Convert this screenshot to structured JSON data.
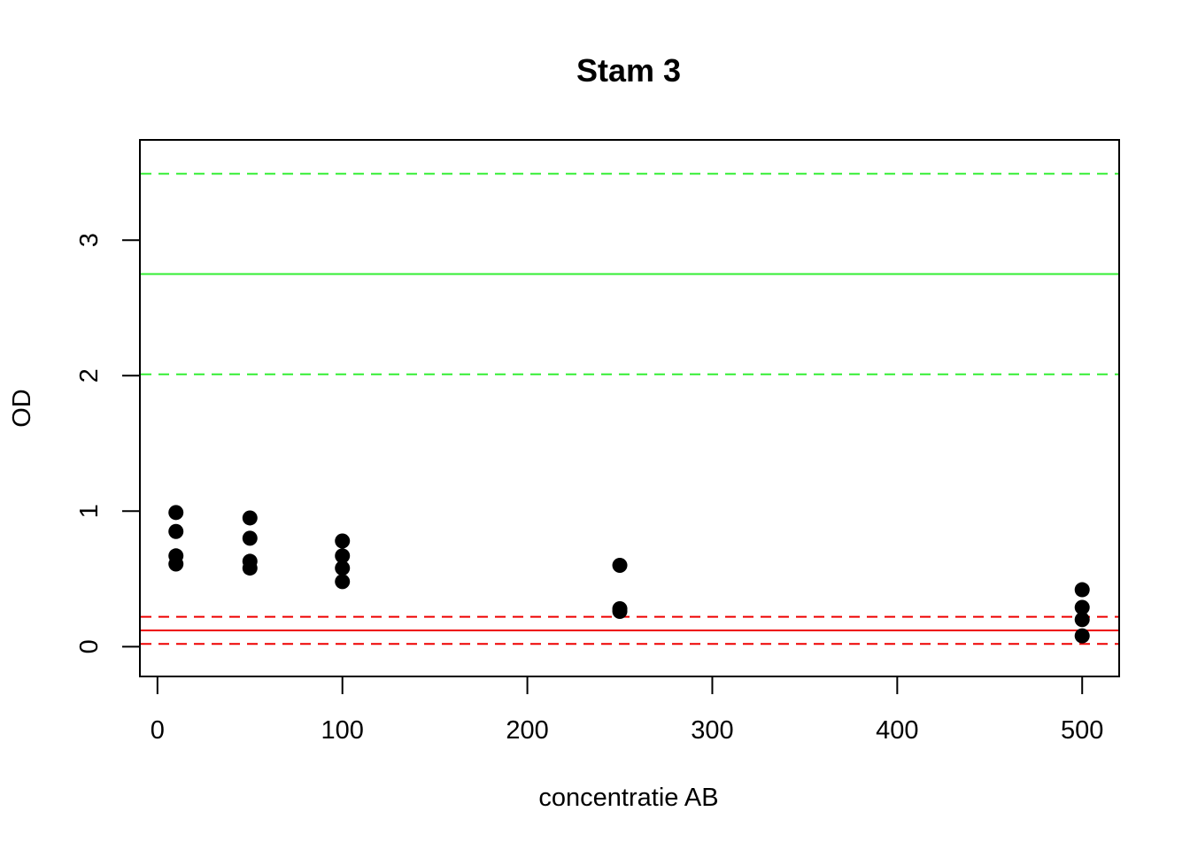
{
  "chart_data": {
    "type": "scatter",
    "title": "Stam 3",
    "xlabel": "concentratie AB",
    "ylabel": "OD",
    "xlim": [
      -9.5,
      520
    ],
    "ylim": [
      -0.22,
      3.74
    ],
    "x_ticks": [
      0,
      100,
      200,
      300,
      400,
      500
    ],
    "y_ticks": [
      0,
      1,
      2,
      3
    ],
    "grid": false,
    "legend": "none",
    "point_color": "#000000",
    "points": [
      {
        "x": 10,
        "y": 0.99
      },
      {
        "x": 10,
        "y": 0.85
      },
      {
        "x": 10,
        "y": 0.67
      },
      {
        "x": 10,
        "y": 0.61
      },
      {
        "x": 50,
        "y": 0.95
      },
      {
        "x": 50,
        "y": 0.8
      },
      {
        "x": 50,
        "y": 0.63
      },
      {
        "x": 50,
        "y": 0.58
      },
      {
        "x": 100,
        "y": 0.78
      },
      {
        "x": 100,
        "y": 0.67
      },
      {
        "x": 100,
        "y": 0.58
      },
      {
        "x": 100,
        "y": 0.48
      },
      {
        "x": 250,
        "y": 0.6
      },
      {
        "x": 250,
        "y": 0.28
      },
      {
        "x": 250,
        "y": 0.26
      },
      {
        "x": 500,
        "y": 0.42
      },
      {
        "x": 500,
        "y": 0.29
      },
      {
        "x": 500,
        "y": 0.2
      },
      {
        "x": 500,
        "y": 0.08
      }
    ],
    "reference_lines": [
      {
        "y": 3.49,
        "color": "#33ee33",
        "style": "dashed"
      },
      {
        "y": 2.75,
        "color": "#33ee33",
        "style": "solid"
      },
      {
        "y": 2.01,
        "color": "#33ee33",
        "style": "dashed"
      },
      {
        "y": 0.22,
        "color": "#ee0000",
        "style": "dashed"
      },
      {
        "y": 0.12,
        "color": "#ee0000",
        "style": "solid"
      },
      {
        "y": 0.02,
        "color": "#ee0000",
        "style": "dashed"
      }
    ]
  }
}
